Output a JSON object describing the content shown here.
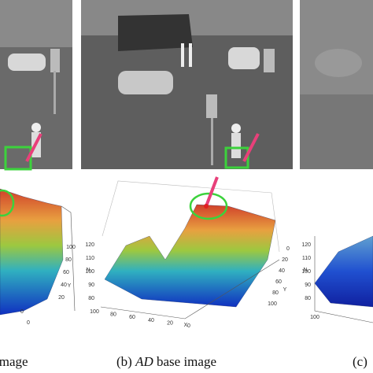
{
  "panels": [
    {
      "caption": {
        "parts": [
          "image"
        ]
      },
      "plot": {
        "y_ticks": [
          20,
          40,
          60,
          80,
          100
        ],
        "y_label": "Y",
        "x_ticks": [
          0,
          0
        ]
      }
    },
    {
      "caption": {
        "parts": [
          "(b) ",
          "AD",
          " base image"
        ]
      },
      "plot": {
        "z_ticks": [
          120,
          110,
          100,
          90,
          80
        ],
        "z_label": "N",
        "x_ticks": [
          100,
          80,
          60,
          40,
          20,
          0
        ],
        "x_label": "X",
        "y_ticks": [
          0,
          20,
          40,
          60,
          80,
          100
        ],
        "y_label": "Y"
      }
    },
    {
      "caption": {
        "parts": [
          "(c)"
        ]
      },
      "plot": {
        "z_ticks": [
          120,
          110,
          100,
          90,
          80
        ],
        "z_label": "N",
        "x_ticks": [
          100
        ]
      }
    }
  ]
}
